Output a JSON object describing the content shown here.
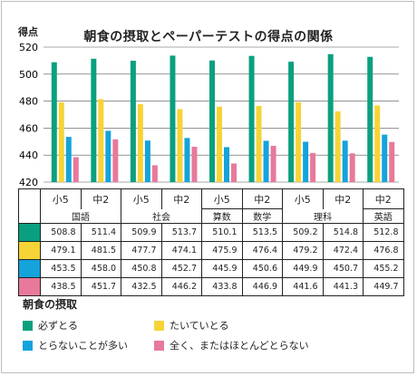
{
  "chart_data": {
    "type": "bar",
    "title": "朝食の摂取とペーパーテストの得点の関係",
    "ylabel": "得点",
    "ylim": [
      420,
      520
    ],
    "yticks": [
      420,
      440,
      460,
      480,
      500,
      520
    ],
    "grid": true,
    "groups": [
      {
        "subject": "国語",
        "grades": [
          "小5",
          "中2"
        ]
      },
      {
        "subject": "社会",
        "grades": [
          "小5",
          "中2"
        ]
      },
      {
        "subject": "算数",
        "grades": [
          "小5"
        ]
      },
      {
        "subject": "数学",
        "grades": [
          "中2"
        ]
      },
      {
        "subject": "理科",
        "grades": [
          "小5",
          "中2"
        ]
      },
      {
        "subject": "英語",
        "grades": [
          "中2"
        ]
      }
    ],
    "categories": [
      "小5",
      "中2",
      "小5",
      "中2",
      "小5",
      "中2",
      "小5",
      "中2",
      "中2"
    ],
    "series": [
      {
        "name": "必ずとる",
        "color": "#0aa07f",
        "values": [
          508.8,
          511.4,
          509.9,
          513.7,
          510.1,
          513.5,
          509.2,
          514.8,
          512.8
        ],
        "labels": [
          "508.8",
          "511.4",
          "509.9",
          "513.7",
          "510.1",
          "513.5",
          "509.2",
          "514.8",
          "512.8"
        ]
      },
      {
        "name": "たいていとる",
        "color": "#f6d437",
        "values": [
          479.1,
          481.5,
          477.7,
          474.1,
          475.9,
          476.4,
          479.2,
          472.4,
          476.8
        ],
        "labels": [
          "479.1",
          "481.5",
          "477.7",
          "474.1",
          "475.9",
          "476.4",
          "479.2",
          "472.4",
          "476.8"
        ]
      },
      {
        "name": "とらないことが多い",
        "color": "#15a3dc",
        "values": [
          453.5,
          458.0,
          450.8,
          452.7,
          445.9,
          450.6,
          449.9,
          450.7,
          455.2
        ],
        "labels": [
          "453.5",
          "458.0",
          "450.8",
          "452.7",
          "445.9",
          "450.6",
          "449.9",
          "450.7",
          "455.2"
        ]
      },
      {
        "name": "全く、またはほとんどとらない",
        "color": "#e8799b",
        "values": [
          438.5,
          451.7,
          432.5,
          446.2,
          433.8,
          446.9,
          441.6,
          441.3,
          449.7
        ],
        "labels": [
          "438.5",
          "451.7",
          "432.5",
          "446.2",
          "433.8",
          "446.9",
          "441.6",
          "441.3",
          "449.7"
        ]
      }
    ],
    "legend": {
      "title": "朝食の摂取",
      "placement": "bottom"
    }
  }
}
